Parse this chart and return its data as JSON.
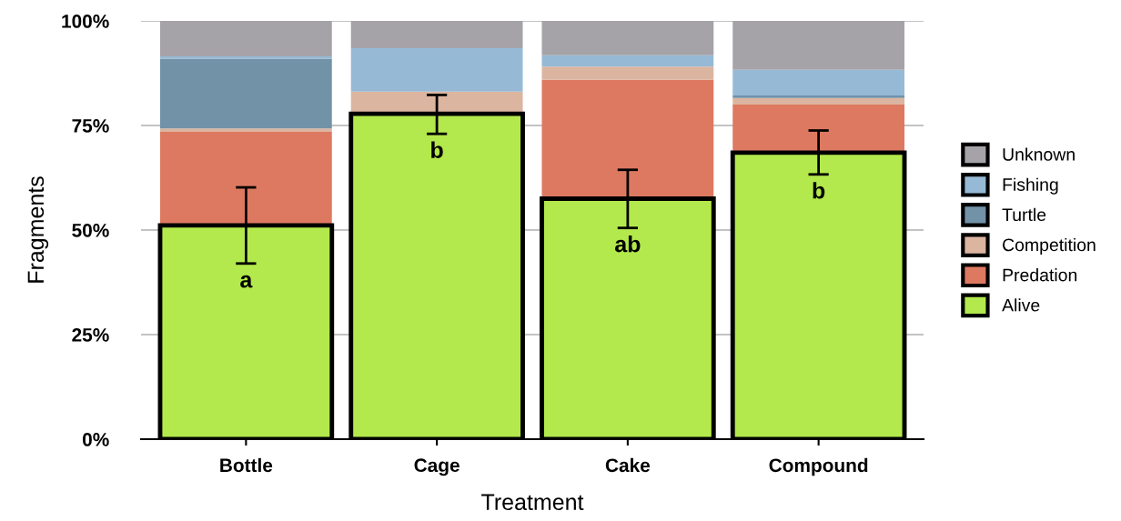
{
  "chart_data": {
    "type": "bar",
    "stacked": true,
    "xlabel": "Treatment",
    "ylabel": "Fragments",
    "categories": [
      "Bottle",
      "Cage",
      "Cake",
      "Compound"
    ],
    "series": [
      {
        "name": "Alive",
        "color": "#b3e94c",
        "values": [
          51.1,
          77.8,
          57.5,
          68.5
        ],
        "errors": [
          [
            42.0,
            60.2
          ],
          [
            73.0,
            82.3
          ],
          [
            50.5,
            64.4
          ],
          [
            63.3,
            73.8
          ]
        ]
      },
      {
        "name": "Predation",
        "color": "#de7961",
        "values": [
          22.4,
          0,
          28.4,
          11.5
        ]
      },
      {
        "name": "Competition",
        "color": "#dcb5a0",
        "values": [
          0.8,
          5.3,
          3.2,
          1.6
        ]
      },
      {
        "name": "Turtle",
        "color": "#7292a8",
        "values": [
          16.7,
          0,
          0,
          0.6
        ]
      },
      {
        "name": "Fishing",
        "color": "#96bad5",
        "values": [
          0.5,
          10.4,
          2.7,
          6.1
        ]
      },
      {
        "name": "Unknown",
        "color": "#a5a3a8",
        "values": [
          8.5,
          6.5,
          8.2,
          11.7
        ]
      }
    ],
    "ylim": [
      0,
      100
    ],
    "yticks": [
      {
        "value": 0,
        "label": "0%"
      },
      {
        "value": 25,
        "label": "25%"
      },
      {
        "value": 50,
        "label": "50%"
      },
      {
        "value": 75,
        "label": "75%"
      },
      {
        "value": 100,
        "label": "100%"
      }
    ],
    "grid": "y",
    "legend": "right",
    "annotations": [
      "a",
      "b",
      "ab",
      "b"
    ]
  }
}
